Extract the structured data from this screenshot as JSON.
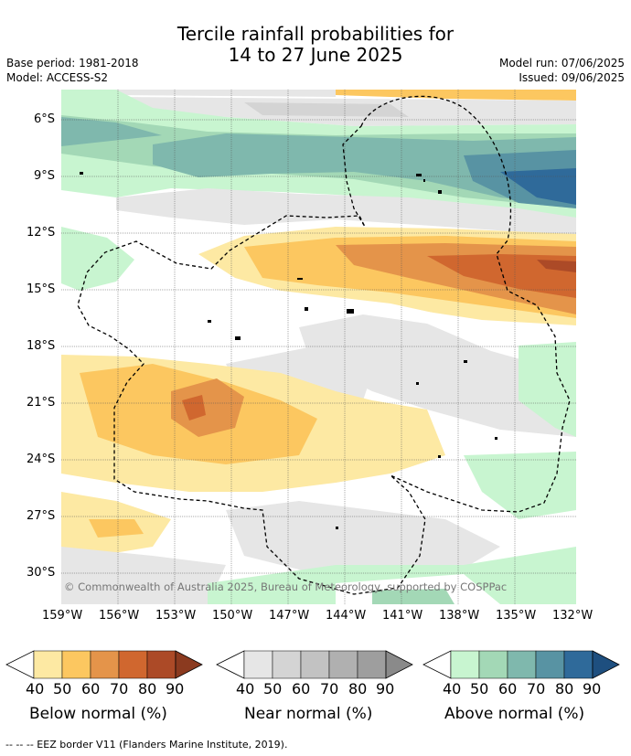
{
  "header": {
    "title_line1": "Tercile rainfall probabilities for",
    "title_line2": "14 to 27 June 2025",
    "base_period": "Base period: 1981-2018",
    "model": "Model: ACCESS-S2",
    "model_run": "Model run: 07/06/2025",
    "issued": "Issued: 09/06/2025"
  },
  "map": {
    "copyright": "© Commonwealth of Australia 2025, Bureau of Meteorology, supported by COSPPac",
    "lat_labels": [
      "6°S",
      "9°S",
      "12°S",
      "15°S",
      "18°S",
      "21°S",
      "24°S",
      "27°S",
      "30°S"
    ],
    "lon_labels": [
      "159°W",
      "156°W",
      "153°W",
      "150°W",
      "147°W",
      "144°W",
      "141°W",
      "138°W",
      "135°W",
      "132°W"
    ]
  },
  "colorbars": [
    {
      "title": "Below normal (%)",
      "ticks": [
        "40",
        "50",
        "60",
        "70",
        "80",
        "90"
      ],
      "colors": [
        "#fde9a3",
        "#fcc760",
        "#e4944a",
        "#d0672f",
        "#ac4a27",
        "#8b3a1f"
      ]
    },
    {
      "title": "Near normal (%)",
      "ticks": [
        "40",
        "50",
        "60",
        "70",
        "80",
        "90"
      ],
      "colors": [
        "#e6e6e6",
        "#d4d4d4",
        "#c2c2c2",
        "#b0b0b0",
        "#9e9e9e",
        "#8a8a8a"
      ]
    },
    {
      "title": "Above normal (%)",
      "ticks": [
        "40",
        "50",
        "60",
        "70",
        "80",
        "90"
      ],
      "colors": [
        "#c8f5d0",
        "#a3d8b6",
        "#7fb8ad",
        "#5893a3",
        "#2f6a9a",
        "#1e4f7f"
      ]
    }
  ],
  "footer": "--  --  -- EEZ border V11 (Flanders Marine Institute, 2019)."
}
